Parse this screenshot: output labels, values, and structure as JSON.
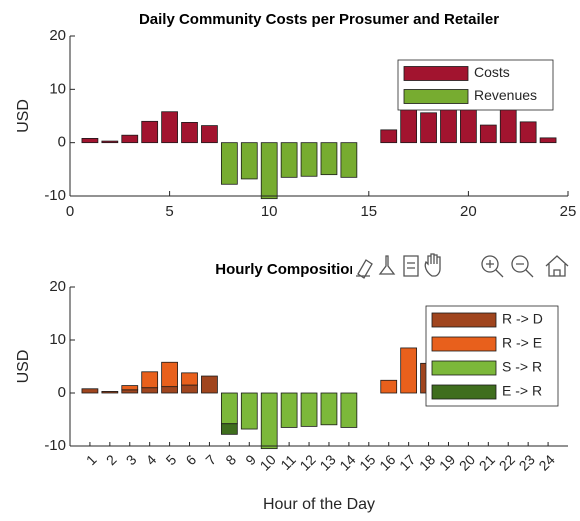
{
  "chart_data": [
    {
      "type": "bar",
      "title": "Daily Community Costs per Prosumer and Retailer",
      "ylabel": "USD",
      "x": [
        1,
        2,
        3,
        4,
        5,
        6,
        7,
        8,
        9,
        10,
        11,
        12,
        13,
        14,
        15,
        16,
        17,
        18,
        19,
        20,
        21,
        22,
        23,
        24
      ],
      "xlim": [
        0,
        25
      ],
      "xticks": [
        0,
        5,
        10,
        15,
        20,
        25
      ],
      "ylim": [
        -10,
        20
      ],
      "yticks": [
        -10,
        0,
        10,
        20
      ],
      "legend": "northeast",
      "series": [
        {
          "name": "Costs",
          "color": "#a2142f",
          "values": [
            0.8,
            0.3,
            1.4,
            4,
            5.8,
            3.8,
            3.2,
            0,
            0,
            0,
            0,
            0,
            0,
            0,
            0,
            2.4,
            8.5,
            5.6,
            7,
            7,
            3.3,
            7,
            3.9,
            0.9
          ]
        },
        {
          "name": "Revenues",
          "color": "#77ac30",
          "values": [
            0,
            0,
            0,
            0,
            0,
            0,
            0,
            -7.8,
            -6.8,
            -10.5,
            -6.5,
            -6.3,
            -6,
            -6.5,
            0,
            0,
            0,
            0,
            0,
            0,
            0,
            0,
            0,
            0
          ]
        }
      ]
    },
    {
      "type": "bar",
      "stacked": true,
      "title": "Hourly Composition of Costs",
      "ylabel": "USD",
      "xlabel": "Hour of the Day",
      "categories": [
        "1",
        "2",
        "3",
        "4",
        "5",
        "6",
        "7",
        "8",
        "9",
        "10",
        "11",
        "12",
        "13",
        "14",
        "15",
        "16",
        "17",
        "18",
        "19",
        "20",
        "21",
        "22",
        "23",
        "24"
      ],
      "ylim": [
        -10,
        20
      ],
      "yticks": [
        -10,
        0,
        10,
        20
      ],
      "legend": "northeast",
      "series": [
        {
          "name": "R -> D",
          "color": "#a0451e",
          "values": [
            0.8,
            0.3,
            0.6,
            1,
            1.2,
            1.5,
            3.2,
            0,
            0,
            0,
            0,
            0,
            0,
            0,
            0,
            0,
            0,
            5.6,
            0,
            0,
            0,
            0,
            0,
            0
          ]
        },
        {
          "name": "R -> E",
          "color": "#e8601c",
          "values": [
            0,
            0,
            0.8,
            3,
            4.6,
            2.3,
            0,
            0,
            0,
            0,
            0,
            0,
            0,
            0,
            0,
            2.4,
            8.5,
            0,
            7,
            7,
            3.3,
            7,
            3.9,
            0.9
          ]
        },
        {
          "name": "S -> R",
          "color": "#7cb83a",
          "values": [
            0,
            0,
            0,
            0,
            0,
            0,
            0,
            -5.8,
            -6.8,
            -10.5,
            -6.5,
            -6.3,
            -6,
            -6.5,
            0,
            0,
            0,
            0,
            0,
            0,
            0,
            0,
            0,
            0
          ]
        },
        {
          "name": "E -> R",
          "color": "#3f6e1e",
          "values": [
            0,
            0,
            0,
            0,
            0,
            0,
            0,
            -2,
            0,
            0,
            0,
            0,
            0,
            0,
            0,
            0,
            0,
            0,
            0,
            0,
            0,
            0,
            0,
            0
          ]
        }
      ]
    }
  ]
}
